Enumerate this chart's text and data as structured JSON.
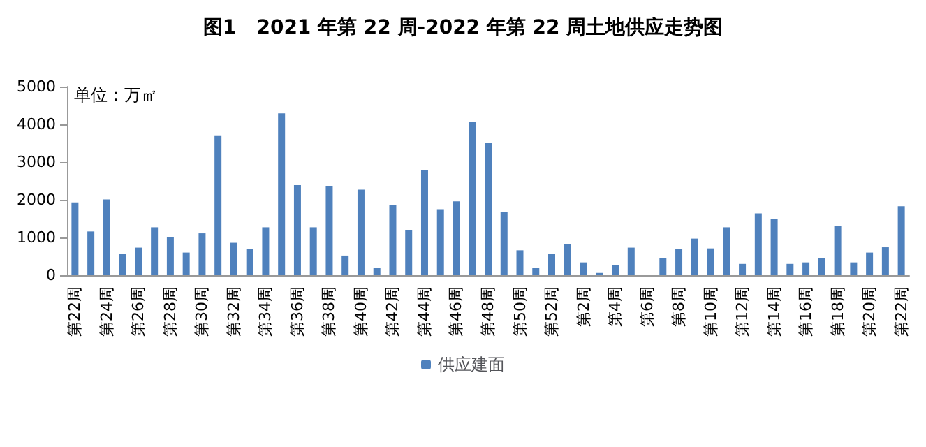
{
  "chart_data": {
    "type": "bar",
    "title": "图1   2021 年第 22 周-2022 年第 22 周土地供应走势图",
    "ylabel": "单位：万㎡",
    "categories": [
      "第22周",
      null,
      "第24周",
      null,
      "第26周",
      null,
      "第28周",
      null,
      "第30周",
      null,
      "第32周",
      null,
      "第34周",
      null,
      "第36周",
      null,
      "第38周",
      null,
      "第40周",
      null,
      "第42周",
      null,
      "第44周",
      null,
      "第46周",
      null,
      "第48周",
      null,
      "第50周",
      null,
      "第52周",
      null,
      "第2周",
      null,
      "第4周",
      null,
      "第6周",
      null,
      "第8周",
      null,
      "第10周",
      null,
      "第12周",
      null,
      "第14周",
      null,
      "第16周",
      null,
      "第18周",
      null,
      "第20周",
      null,
      "第22周"
    ],
    "series": [
      {
        "name": "供应建面",
        "color": "#4f81bd",
        "values": [
          1930,
          1160,
          2010,
          560,
          730,
          1270,
          1000,
          600,
          1110,
          3690,
          860,
          700,
          1270,
          4290,
          2390,
          1270,
          2350,
          520,
          2270,
          190,
          1860,
          1190,
          2780,
          1750,
          1960,
          4060,
          3500,
          1680,
          660,
          190,
          560,
          820,
          340,
          60,
          260,
          730,
          0,
          450,
          700,
          970,
          710,
          1270,
          300,
          1640,
          1490,
          300,
          340,
          450,
          1300,
          340,
          600,
          740,
          1830
        ]
      }
    ],
    "ylim": [
      0,
      5000
    ],
    "yticks": [
      0,
      1000,
      2000,
      3000,
      4000,
      5000
    ],
    "grid": false,
    "legend": "bottom"
  }
}
